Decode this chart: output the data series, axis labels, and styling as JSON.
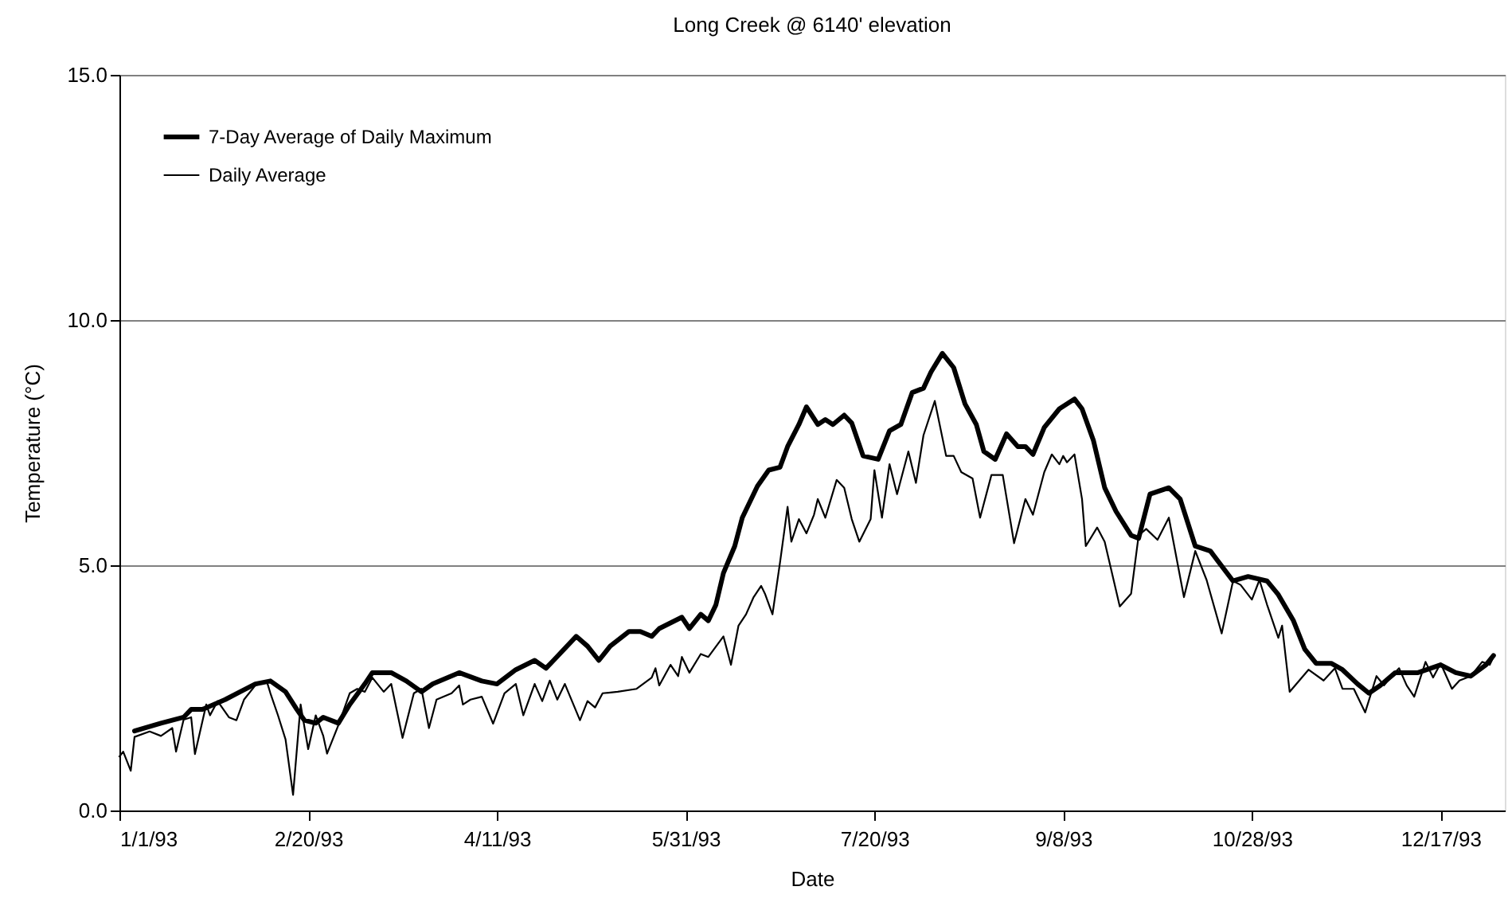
{
  "chart_data": {
    "type": "line",
    "title": "Long Creek @ 6140' elevation",
    "xlabel": "Date",
    "ylabel": "Temperature (°C)",
    "xlim": [
      "1993-01-01",
      "1994-01-03"
    ],
    "xticks": [
      {
        "value": "1993-01-01",
        "label": "1/1/93"
      },
      {
        "value": "1993-02-20",
        "label": "2/20/93"
      },
      {
        "value": "1993-04-11",
        "label": "4/11/93"
      },
      {
        "value": "1993-05-31",
        "label": "5/31/93"
      },
      {
        "value": "1993-07-20",
        "label": "7/20/93"
      },
      {
        "value": "1993-09-08",
        "label": "9/8/93"
      },
      {
        "value": "1993-10-28",
        "label": "10/28/93"
      },
      {
        "value": "1993-12-17",
        "label": "12/17/93"
      }
    ],
    "ylim": [
      0,
      15
    ],
    "yticks": [
      {
        "value": 0,
        "label": "0.0"
      },
      {
        "value": 5,
        "label": "5.0"
      },
      {
        "value": 10,
        "label": "10.0"
      },
      {
        "value": 15,
        "label": "15.0"
      }
    ],
    "grid": "y",
    "legend": "top left",
    "series": [
      {
        "name": "7-Day Average of Daily Maximum",
        "color": "#000000",
        "x": [
          "1993-01-05",
          "1993-01-12",
          "1993-01-18",
          "1993-01-20",
          "1993-01-23",
          "1993-01-29",
          "1993-02-02",
          "1993-02-06",
          "1993-02-10",
          "1993-02-14",
          "1993-02-17",
          "1993-02-19",
          "1993-02-22",
          "1993-02-24",
          "1993-02-28",
          "1993-03-03",
          "1993-03-07",
          "1993-03-09",
          "1993-03-14",
          "1993-03-18",
          "1993-03-22",
          "1993-03-25",
          "1993-04-01",
          "1993-04-07",
          "1993-04-11",
          "1993-04-16",
          "1993-04-21",
          "1993-04-24",
          "1993-04-26",
          "1993-05-02",
          "1993-05-05",
          "1993-05-08",
          "1993-05-11",
          "1993-05-16",
          "1993-05-19",
          "1993-05-22",
          "1993-05-24",
          "1993-05-30",
          "1993-06-01",
          "1993-06-04",
          "1993-06-06",
          "1993-06-08",
          "1993-06-10",
          "1993-06-13",
          "1993-06-15",
          "1993-06-19",
          "1993-06-22",
          "1993-06-25",
          "1993-06-27",
          "1993-06-30",
          "1993-07-02",
          "1993-07-05",
          "1993-07-07",
          "1993-07-09",
          "1993-07-12",
          "1993-07-14",
          "1993-07-17",
          "1993-07-21",
          "1993-07-24",
          "1993-07-27",
          "1993-07-30",
          "1993-08-02",
          "1993-08-04",
          "1993-08-07",
          "1993-08-10",
          "1993-08-13",
          "1993-08-16",
          "1993-08-18",
          "1993-08-21",
          "1993-08-24",
          "1993-08-27",
          "1993-08-29",
          "1993-08-31",
          "1993-09-03",
          "1993-09-07",
          "1993-09-11",
          "1993-09-13",
          "1993-09-16",
          "1993-09-19",
          "1993-09-22",
          "1993-09-26",
          "1993-09-28",
          "1993-10-01",
          "1993-10-06",
          "1993-10-09",
          "1993-10-13",
          "1993-10-17",
          "1993-10-23",
          "1993-10-27",
          "1993-11-01",
          "1993-11-04",
          "1993-11-08",
          "1993-11-11",
          "1993-11-14",
          "1993-11-18",
          "1993-11-21",
          "1993-11-25",
          "1993-11-28",
          "1993-12-01",
          "1993-12-05",
          "1993-12-11",
          "1993-12-17",
          "1993-12-21",
          "1993-12-25",
          "1993-12-29",
          "1993-12-31"
        ],
        "values": [
          1.62,
          1.78,
          1.9,
          2.06,
          2.06,
          2.26,
          2.42,
          2.58,
          2.64,
          2.42,
          2.06,
          1.84,
          1.78,
          1.9,
          1.78,
          2.16,
          2.58,
          2.81,
          2.81,
          2.64,
          2.42,
          2.58,
          2.81,
          2.64,
          2.58,
          2.87,
          3.06,
          2.9,
          3.06,
          3.55,
          3.35,
          3.06,
          3.35,
          3.65,
          3.65,
          3.55,
          3.71,
          3.94,
          3.71,
          4.0,
          3.87,
          4.19,
          4.84,
          5.39,
          5.97,
          6.61,
          6.94,
          7.0,
          7.42,
          7.87,
          8.23,
          7.87,
          7.97,
          7.87,
          8.06,
          7.9,
          7.23,
          7.16,
          7.74,
          7.87,
          8.52,
          8.61,
          8.94,
          9.32,
          9.03,
          8.29,
          7.87,
          7.32,
          7.16,
          7.68,
          7.42,
          7.42,
          7.26,
          7.81,
          8.19,
          8.39,
          8.19,
          7.55,
          6.58,
          6.1,
          5.61,
          5.55,
          6.45,
          6.58,
          6.35,
          5.39,
          5.29,
          4.68,
          4.77,
          4.68,
          4.4,
          3.87,
          3.29,
          3.0,
          3.0,
          2.87,
          2.58,
          2.39,
          2.55,
          2.81,
          2.81,
          2.97,
          2.81,
          2.74,
          2.97,
          3.16
        ]
      },
      {
        "name": "Daily Average",
        "color": "#000000",
        "x": [
          "1993-01-01",
          "1993-01-02",
          "1993-01-04",
          "1993-01-05",
          "1993-01-09",
          "1993-01-12",
          "1993-01-15",
          "1993-01-16",
          "1993-01-18",
          "1993-01-20",
          "1993-01-21",
          "1993-01-24",
          "1993-01-25",
          "1993-01-27",
          "1993-01-30",
          "1993-02-01",
          "1993-02-03",
          "1993-02-06",
          "1993-02-09",
          "1993-02-10",
          "1993-02-12",
          "1993-02-14",
          "1993-02-16",
          "1993-02-18",
          "1993-02-20",
          "1993-02-22",
          "1993-02-24",
          "1993-02-25",
          "1993-02-28",
          "1993-03-03",
          "1993-03-05",
          "1993-03-07",
          "1993-03-09",
          "1993-03-12",
          "1993-03-14",
          "1993-03-17",
          "1993-03-20",
          "1993-03-22",
          "1993-03-24",
          "1993-03-26",
          "1993-03-30",
          "1993-04-01",
          "1993-04-02",
          "1993-04-04",
          "1993-04-07",
          "1993-04-10",
          "1993-04-13",
          "1993-04-16",
          "1993-04-18",
          "1993-04-21",
          "1993-04-23",
          "1993-04-25",
          "1993-04-27",
          "1993-04-29",
          "1993-05-03",
          "1993-05-05",
          "1993-05-07",
          "1993-05-09",
          "1993-05-13",
          "1993-05-18",
          "1993-05-22",
          "1993-05-23",
          "1993-05-24",
          "1993-05-27",
          "1993-05-29",
          "1993-05-30",
          "1993-06-01",
          "1993-06-04",
          "1993-06-06",
          "1993-06-10",
          "1993-06-12",
          "1993-06-14",
          "1993-06-16",
          "1993-06-18",
          "1993-06-20",
          "1993-06-21",
          "1993-06-23",
          "1993-06-25",
          "1993-06-27",
          "1993-06-28",
          "1993-06-30",
          "1993-07-02",
          "1993-07-04",
          "1993-07-05",
          "1993-07-07",
          "1993-07-10",
          "1993-07-12",
          "1993-07-14",
          "1993-07-16",
          "1993-07-19",
          "1993-07-20",
          "1993-07-22",
          "1993-07-24",
          "1993-07-26",
          "1993-07-29",
          "1993-07-31",
          "1993-08-02",
          "1993-08-05",
          "1993-08-08",
          "1993-08-10",
          "1993-08-12",
          "1993-08-15",
          "1993-08-17",
          "1993-08-20",
          "1993-08-23",
          "1993-08-26",
          "1993-08-29",
          "1993-08-31",
          "1993-09-03",
          "1993-09-05",
          "1993-09-07",
          "1993-09-08",
          "1993-09-09",
          "1993-09-11",
          "1993-09-13",
          "1993-09-14",
          "1993-09-17",
          "1993-09-19",
          "1993-09-23",
          "1993-09-26",
          "1993-09-28",
          "1993-09-30",
          "1993-10-03",
          "1993-10-06",
          "1993-10-10",
          "1993-10-13",
          "1993-10-16",
          "1993-10-20",
          "1993-10-23",
          "1993-10-25",
          "1993-10-28",
          "1993-10-30",
          "1993-11-01",
          "1993-11-04",
          "1993-11-05",
          "1993-11-07",
          "1993-11-12",
          "1993-11-16",
          "1993-11-19",
          "1993-11-21",
          "1993-11-24",
          "1993-11-27",
          "1993-11-30",
          "1993-12-02",
          "1993-12-04",
          "1993-12-06",
          "1993-12-08",
          "1993-12-10",
          "1993-12-13",
          "1993-12-15",
          "1993-12-17",
          "1993-12-20",
          "1993-12-22",
          "1993-12-25",
          "1993-12-28",
          "1993-12-30",
          "1993-12-31"
        ],
        "values": [
          1.1,
          1.2,
          0.81,
          1.5,
          1.61,
          1.52,
          1.68,
          1.2,
          1.85,
          1.9,
          1.15,
          2.16,
          1.94,
          2.23,
          1.9,
          1.84,
          2.26,
          2.55,
          2.64,
          2.39,
          1.94,
          1.45,
          0.32,
          2.16,
          1.25,
          1.94,
          1.52,
          1.16,
          1.74,
          2.39,
          2.48,
          2.42,
          2.71,
          2.42,
          2.58,
          1.48,
          2.39,
          2.48,
          1.68,
          2.26,
          2.39,
          2.55,
          2.16,
          2.26,
          2.32,
          1.77,
          2.39,
          2.58,
          1.94,
          2.58,
          2.23,
          2.65,
          2.26,
          2.58,
          1.84,
          2.23,
          2.1,
          2.39,
          2.42,
          2.48,
          2.71,
          2.9,
          2.55,
          2.97,
          2.74,
          3.13,
          2.81,
          3.19,
          3.13,
          3.55,
          2.97,
          3.77,
          4.0,
          4.35,
          4.58,
          4.42,
          4.0,
          5.06,
          6.19,
          5.48,
          5.94,
          5.65,
          6.03,
          6.35,
          5.97,
          6.74,
          6.58,
          5.94,
          5.48,
          5.94,
          6.94,
          5.97,
          7.06,
          6.45,
          7.32,
          6.68,
          7.65,
          8.35,
          7.23,
          7.23,
          6.9,
          6.77,
          5.97,
          6.84,
          6.84,
          5.45,
          6.35,
          6.03,
          6.9,
          7.26,
          7.06,
          7.23,
          7.1,
          7.26,
          6.35,
          5.39,
          5.77,
          5.48,
          4.16,
          4.42,
          5.61,
          5.74,
          5.52,
          5.97,
          4.35,
          5.29,
          4.7,
          3.61,
          4.68,
          4.6,
          4.3,
          4.7,
          4.2,
          3.52,
          3.77,
          2.42,
          2.87,
          2.65,
          2.9,
          2.48,
          2.48,
          2.0,
          2.74,
          2.55,
          2.74,
          2.9,
          2.55,
          2.32,
          3.03,
          2.71,
          3.0,
          2.48,
          2.65,
          2.74,
          3.03,
          2.97,
          3.13
        ]
      }
    ]
  }
}
